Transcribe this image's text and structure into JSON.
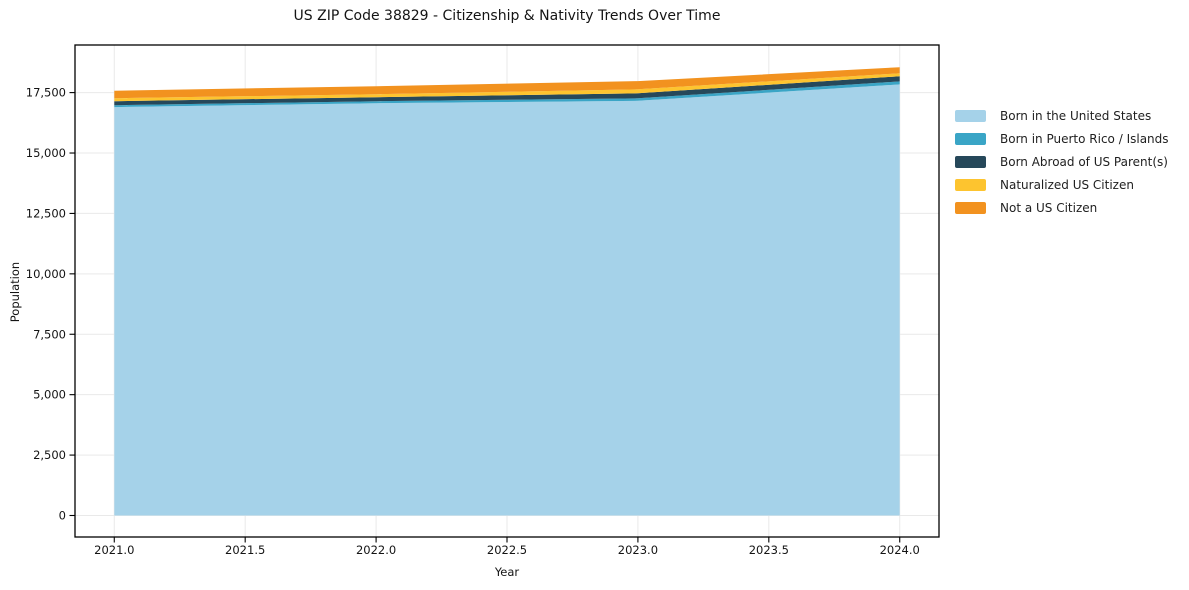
{
  "title": "US ZIP Code 38829 - Citizenship & Nativity Trends Over Time",
  "chart_data": {
    "type": "area",
    "stacked": true,
    "title": "US ZIP Code 38829 - Citizenship & Nativity Trends Over Time",
    "xlabel": "Year",
    "ylabel": "Population",
    "x": [
      2021,
      2022,
      2023,
      2024
    ],
    "series": [
      {
        "name": "Born in the United States",
        "color": "#a5d2e9",
        "values": [
          16900,
          17060,
          17160,
          17840
        ]
      },
      {
        "name": "Born in Puerto Rico / Islands",
        "color": "#3aa5c6",
        "values": [
          80,
          85,
          105,
          125
        ]
      },
      {
        "name": "Born Abroad of US Parent(s)",
        "color": "#26485a",
        "values": [
          165,
          165,
          205,
          210
        ]
      },
      {
        "name": "Naturalized US Citizen",
        "color": "#fdc42f",
        "values": [
          125,
          125,
          165,
          125
        ]
      },
      {
        "name": "Not a US Citizen",
        "color": "#f2921f",
        "values": [
          310,
          330,
          340,
          250
        ]
      }
    ],
    "xlim": [
      2020.85,
      2024.15
    ],
    "ylim": [
      -890,
      19470
    ],
    "xtick_values": [
      2021.0,
      2021.5,
      2022.0,
      2022.5,
      2023.0,
      2023.5,
      2024.0
    ],
    "xtick_labels": [
      "2021.0",
      "2021.5",
      "2022.0",
      "2022.5",
      "2023.0",
      "2023.5",
      "2024.0"
    ],
    "ytick_values": [
      0,
      2500,
      5000,
      7500,
      10000,
      12500,
      15000,
      17500
    ],
    "ytick_labels": [
      "0",
      "2,500",
      "5,000",
      "7,500",
      "10,000",
      "12,500",
      "15,000",
      "17,500"
    ],
    "grid": true,
    "legend_position": "right"
  }
}
